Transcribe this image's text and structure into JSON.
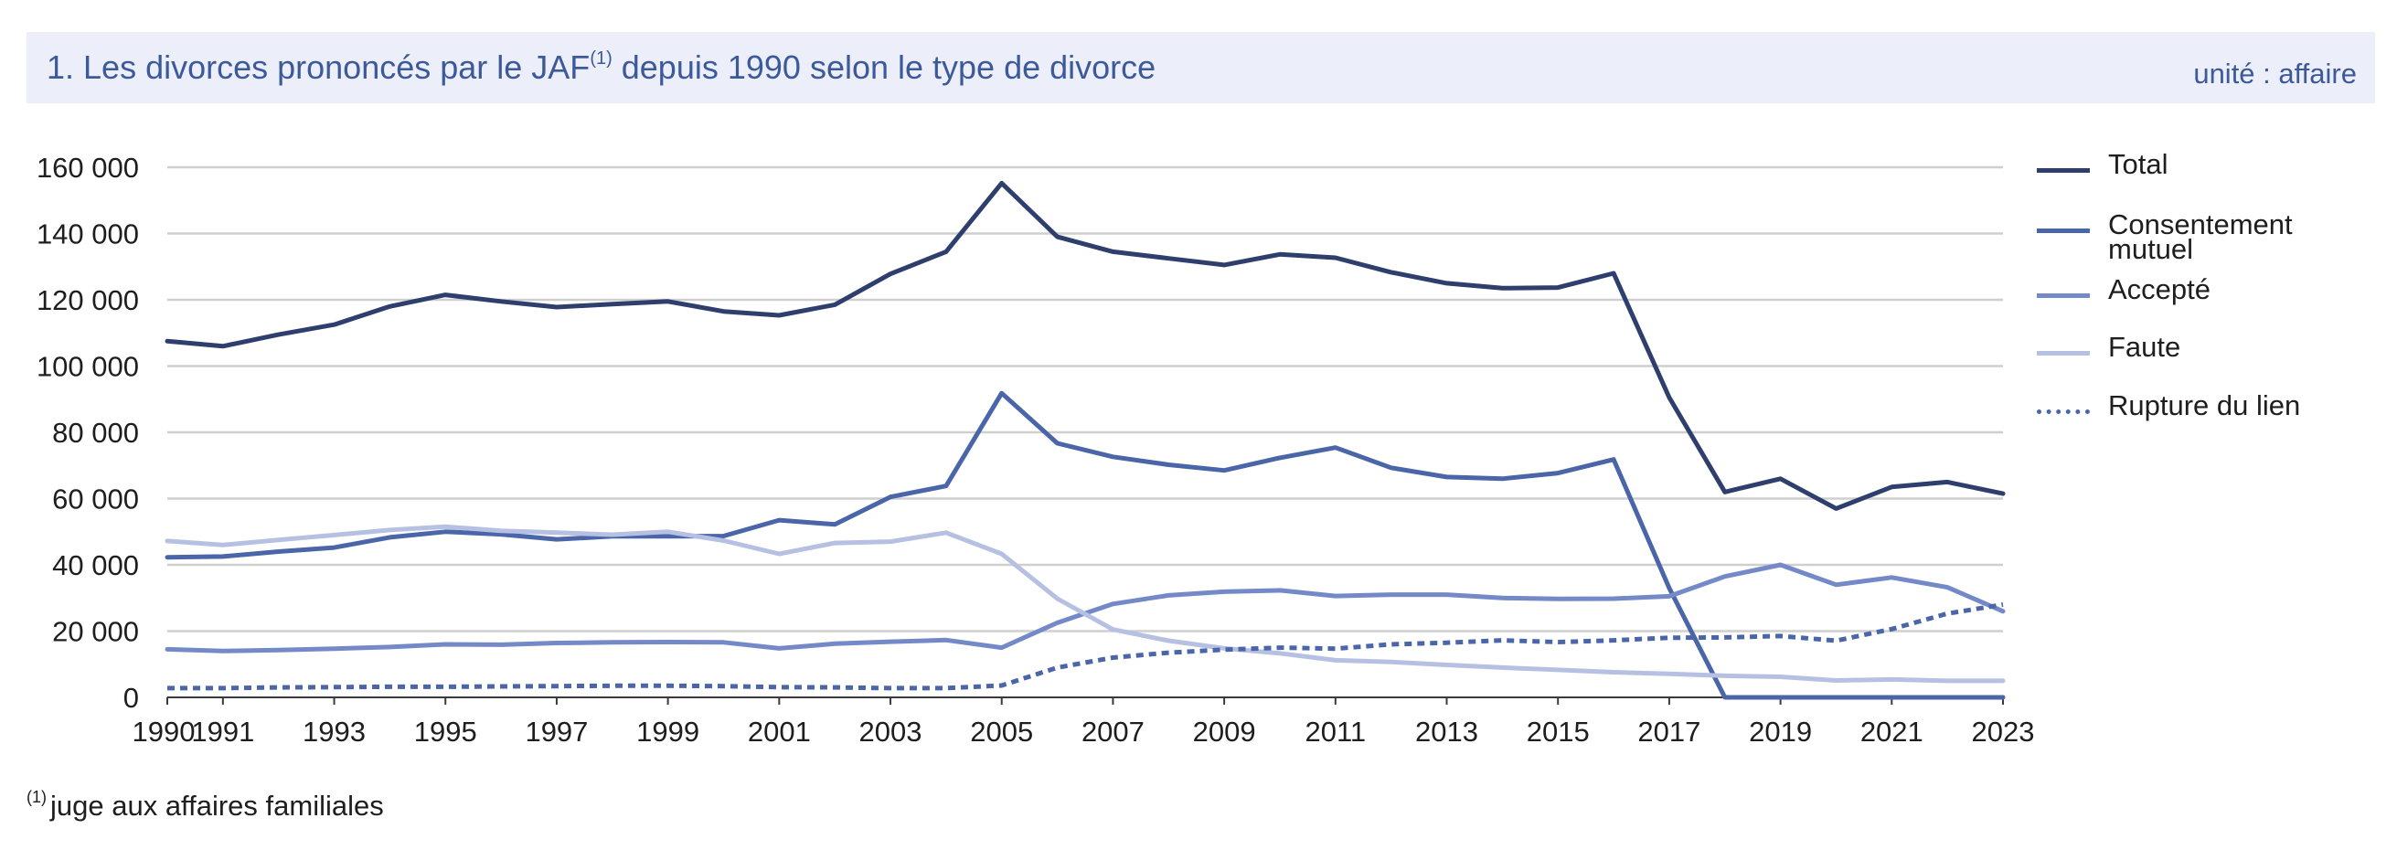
{
  "header": {
    "title_main": "1. Les divorces prononcés par le JAF",
    "title_sup": "(1)",
    "title_rest": " depuis 1990 selon le type de divorce",
    "unit": "unité : affaire"
  },
  "footnote": {
    "sup": "(1)",
    "text": "juge aux affaires familiales"
  },
  "chart_data": {
    "type": "line",
    "title": "1. Les divorces prononcés par le JAF(1) depuis 1990 selon le type de divorce",
    "xlabel": "",
    "ylabel": "unité : affaire",
    "ylim": [
      0,
      160000
    ],
    "y_ticks": [
      0,
      20000,
      40000,
      60000,
      80000,
      100000,
      120000,
      140000,
      160000
    ],
    "y_tick_labels": [
      "0",
      "20 000",
      "40 000",
      "60 000",
      "80 000",
      "100 000",
      "120 000",
      "140 000",
      "160 000"
    ],
    "x": [
      1990,
      1991,
      1992,
      1993,
      1994,
      1995,
      1996,
      1997,
      1998,
      1999,
      2000,
      2001,
      2002,
      2003,
      2004,
      2005,
      2006,
      2007,
      2008,
      2009,
      2010,
      2011,
      2012,
      2013,
      2014,
      2015,
      2016,
      2017,
      2018,
      2019,
      2020,
      2021,
      2022,
      2023
    ],
    "x_tick_labels": [
      "1990",
      "1991",
      "1993",
      "1995",
      "1997",
      "1999",
      "2001",
      "2003",
      "2005",
      "2007",
      "2009",
      "2011",
      "2013",
      "2015",
      "2017",
      "2019",
      "2021",
      "2023"
    ],
    "grid": true,
    "legend_position": "right",
    "series": [
      {
        "name": "Total",
        "color": "#2e3f6e",
        "dash": false,
        "values": [
          107500,
          106000,
          109500,
          112500,
          118000,
          121500,
          119500,
          117800,
          118700,
          119500,
          116500,
          115300,
          118500,
          127800,
          134500,
          155200,
          139000,
          134500,
          132500,
          130500,
          133700,
          132700,
          128300,
          125000,
          123500,
          123700,
          128000,
          90500,
          62000,
          66000,
          57000,
          63500,
          65000,
          61500
        ]
      },
      {
        "name": "Consentement mutuel",
        "color": "#4a66a8",
        "dash": false,
        "values": [
          42300,
          42500,
          44000,
          45200,
          48300,
          50000,
          49200,
          47700,
          48600,
          48600,
          48700,
          53500,
          52200,
          60500,
          63800,
          91800,
          76700,
          72600,
          70200,
          68500,
          72300,
          75400,
          69300,
          66500,
          66000,
          67700,
          71800,
          33000,
          0,
          0,
          0,
          0,
          0,
          0
        ]
      },
      {
        "name": "Accepté",
        "color": "#7489c8",
        "dash": false,
        "values": [
          14500,
          14000,
          14300,
          14700,
          15200,
          16000,
          15900,
          16400,
          16600,
          16700,
          16600,
          14800,
          16200,
          16800,
          17300,
          15000,
          22500,
          28200,
          30800,
          31900,
          32300,
          30600,
          31000,
          31000,
          30000,
          29700,
          29800,
          30500,
          36500,
          40000,
          34000,
          36200,
          33200,
          26000
        ]
      },
      {
        "name": "Faute",
        "color": "#b6c0e2",
        "dash": false,
        "values": [
          47200,
          46000,
          47500,
          49000,
          50500,
          51500,
          50300,
          49700,
          49100,
          50000,
          47300,
          43300,
          46600,
          47000,
          49700,
          43300,
          29800,
          20500,
          17100,
          14800,
          13300,
          11200,
          10700,
          9800,
          9000,
          8300,
          7600,
          7100,
          6500,
          6200,
          5100,
          5400,
          5000,
          5000
        ]
      },
      {
        "name": "Rupture du lien",
        "color": "#4a66a8",
        "dash": true,
        "values": [
          2800,
          2800,
          3000,
          3100,
          3200,
          3200,
          3300,
          3400,
          3500,
          3500,
          3400,
          3100,
          3000,
          2800,
          2800,
          3600,
          9000,
          12000,
          13500,
          14400,
          15000,
          14700,
          16000,
          16500,
          17200,
          16700,
          17200,
          18000,
          18100,
          18500,
          17100,
          20600,
          25300,
          28000
        ]
      }
    ]
  }
}
